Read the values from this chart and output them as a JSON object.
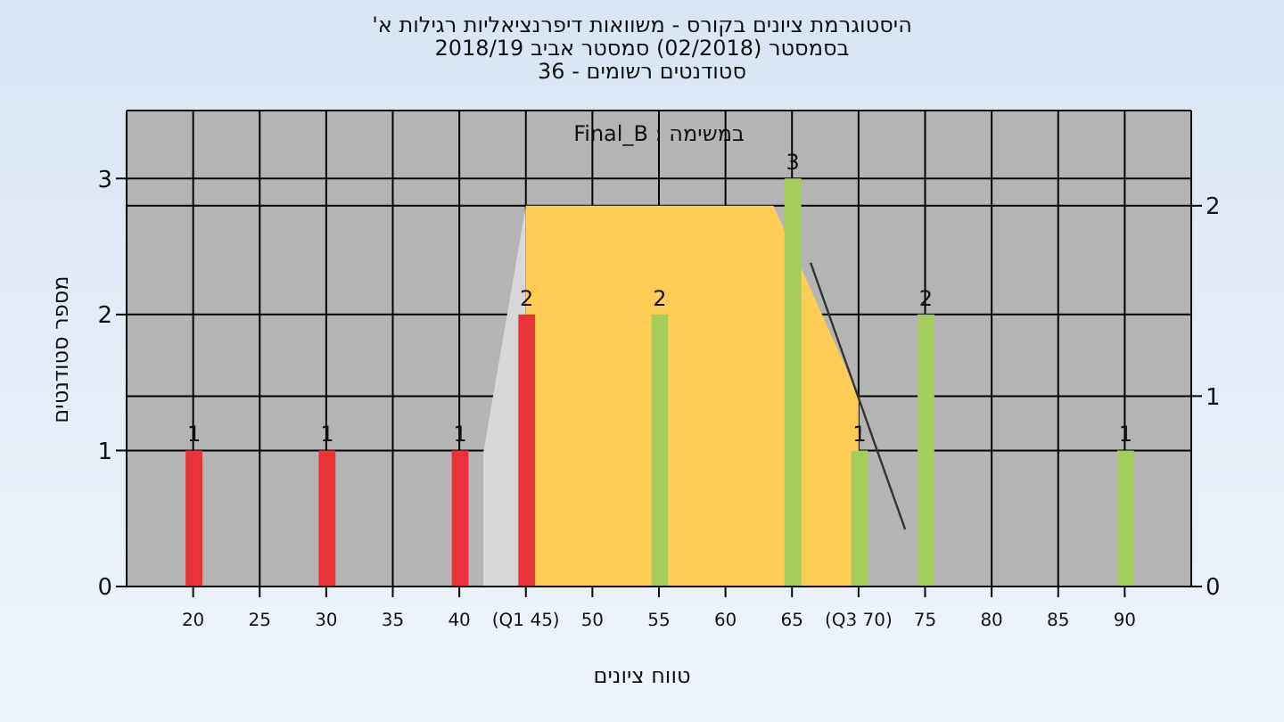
{
  "chart_data": {
    "type": "bar",
    "title": "היסטוגרמת ציונים בקורס - משוואות דיפרנציאליות רגילות א'",
    "subtitle": "בסמסטר  (02/2018)  סמסטר אביב 2018/19\nסטודנטים רשומים - 36",
    "xlabel": "טווח ציונים",
    "ylabel": "מספר סטודנטים",
    "annotations": [
      "במשימה : Final_B"
    ],
    "x": [
      20,
      30,
      40,
      45,
      55,
      65,
      70,
      75,
      90
    ],
    "series": [
      {
        "values": [
          1,
          1,
          1,
          2,
          2,
          3,
          1,
          2,
          1
        ],
        "value_labels": [
          "1",
          "1",
          "1",
          "2",
          "2",
          "3",
          "1",
          "2",
          "1"
        ],
        "colors": [
          "#e8333a",
          "#e8333a",
          "#e8333a",
          "#e8333a",
          "#a6cc5c",
          "#a6cc5c",
          "#a6cc5c",
          "#a6cc5c",
          "#a6cc5c"
        ]
      },
      {
        "type": "area",
        "axis": "y2",
        "color": "#d8d8d8",
        "x": [
          41.8,
          45
        ],
        "values": [
          0.7,
          2
        ]
      },
      {
        "type": "area",
        "axis": "y2",
        "color": "#ffcc55",
        "x": [
          45,
          63.6,
          70
        ],
        "values": [
          2,
          2,
          1
        ]
      },
      {
        "type": "line",
        "axis": "y2",
        "color": "#333333",
        "x": [
          66.4,
          73.5
        ],
        "values": [
          1.7,
          0.3
        ]
      }
    ],
    "grid": true,
    "xlim": [
      15,
      95
    ],
    "xticks": [
      20,
      25,
      30,
      35,
      40,
      {
        "value": 45,
        "label": "(Q1 45)"
      },
      50,
      55,
      60,
      65,
      {
        "value": 70,
        "label": "(Q3 70)"
      },
      75,
      80,
      85,
      90
    ],
    "ylim": [
      0,
      3.5
    ],
    "yticks": [
      0,
      1,
      2,
      3
    ],
    "y2lim": [
      0,
      2.5
    ],
    "y2ticks": [
      0,
      1,
      2
    ]
  }
}
